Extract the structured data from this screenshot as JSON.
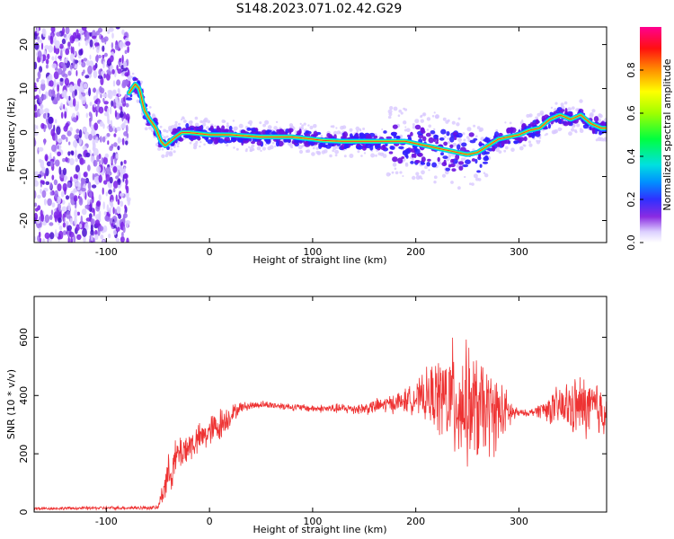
{
  "title": "S148.2023.071.02.42.G29",
  "chart_data": [
    {
      "type": "heatmap",
      "xlabel": "Height of straight line (km)",
      "ylabel": "Frequency (Hz)",
      "xlim": [
        -170,
        385
      ],
      "ylim": [
        -25,
        24
      ],
      "xticks": [
        -100,
        0,
        100,
        200,
        300
      ],
      "yticks": [
        -20,
        -10,
        0,
        10,
        20
      ],
      "ridge": {
        "x": [
          -78,
          -72,
          -68,
          -63,
          -58,
          -52,
          -47,
          -43,
          -38,
          -33,
          -27,
          -20,
          0,
          20,
          50,
          80,
          100,
          110,
          130,
          150,
          170,
          180,
          190,
          200,
          210,
          220,
          230,
          240,
          250,
          260,
          270,
          280,
          290,
          300,
          310,
          320,
          330,
          340,
          350,
          360,
          370,
          380
        ],
        "y": [
          9,
          11,
          10,
          5,
          3,
          1,
          -2,
          -3,
          -2,
          -1,
          0,
          0,
          -0.5,
          -0.5,
          -1,
          -1,
          -1.5,
          -1.8,
          -2,
          -2,
          -2,
          -2,
          -2,
          -2.5,
          -3,
          -3.5,
          -4,
          -4.5,
          -5,
          -4.5,
          -3,
          -1.5,
          -1,
          -0.5,
          0.5,
          1,
          3,
          4,
          3,
          4,
          2,
          1
        ]
      },
      "colorbar": {
        "label": "Normalized spectral amplitude",
        "ticks": [
          "0.0",
          "0.2",
          "0.4",
          "0.6",
          "0.8"
        ],
        "range": [
          0,
          1
        ]
      }
    },
    {
      "type": "line",
      "xlabel": "Height of straight line (km)",
      "ylabel": "SNR (10 * v/v)",
      "xlim": [
        -170,
        385
      ],
      "ylim": [
        0,
        740
      ],
      "xticks": [
        -100,
        0,
        100,
        200,
        300
      ],
      "yticks": [
        0,
        200,
        400,
        600
      ],
      "color": "#ee3333",
      "envelope": {
        "x": [
          -170,
          -100,
          -50,
          -42,
          -30,
          -10,
          10,
          30,
          50,
          100,
          150,
          180,
          200,
          220,
          240,
          260,
          280,
          295,
          300,
          310,
          320,
          340,
          360,
          385
        ],
        "mean": [
          12,
          14,
          15,
          110,
          200,
          250,
          300,
          360,
          370,
          355,
          355,
          375,
          390,
          400,
          380,
          350,
          340,
          340,
          340,
          340,
          350,
          360,
          360,
          350
        ],
        "amp": [
          6,
          7,
          8,
          80,
          80,
          60,
          70,
          20,
          15,
          15,
          25,
          40,
          60,
          150,
          260,
          220,
          150,
          40,
          15,
          12,
          30,
          90,
          130,
          120
        ]
      }
    }
  ]
}
